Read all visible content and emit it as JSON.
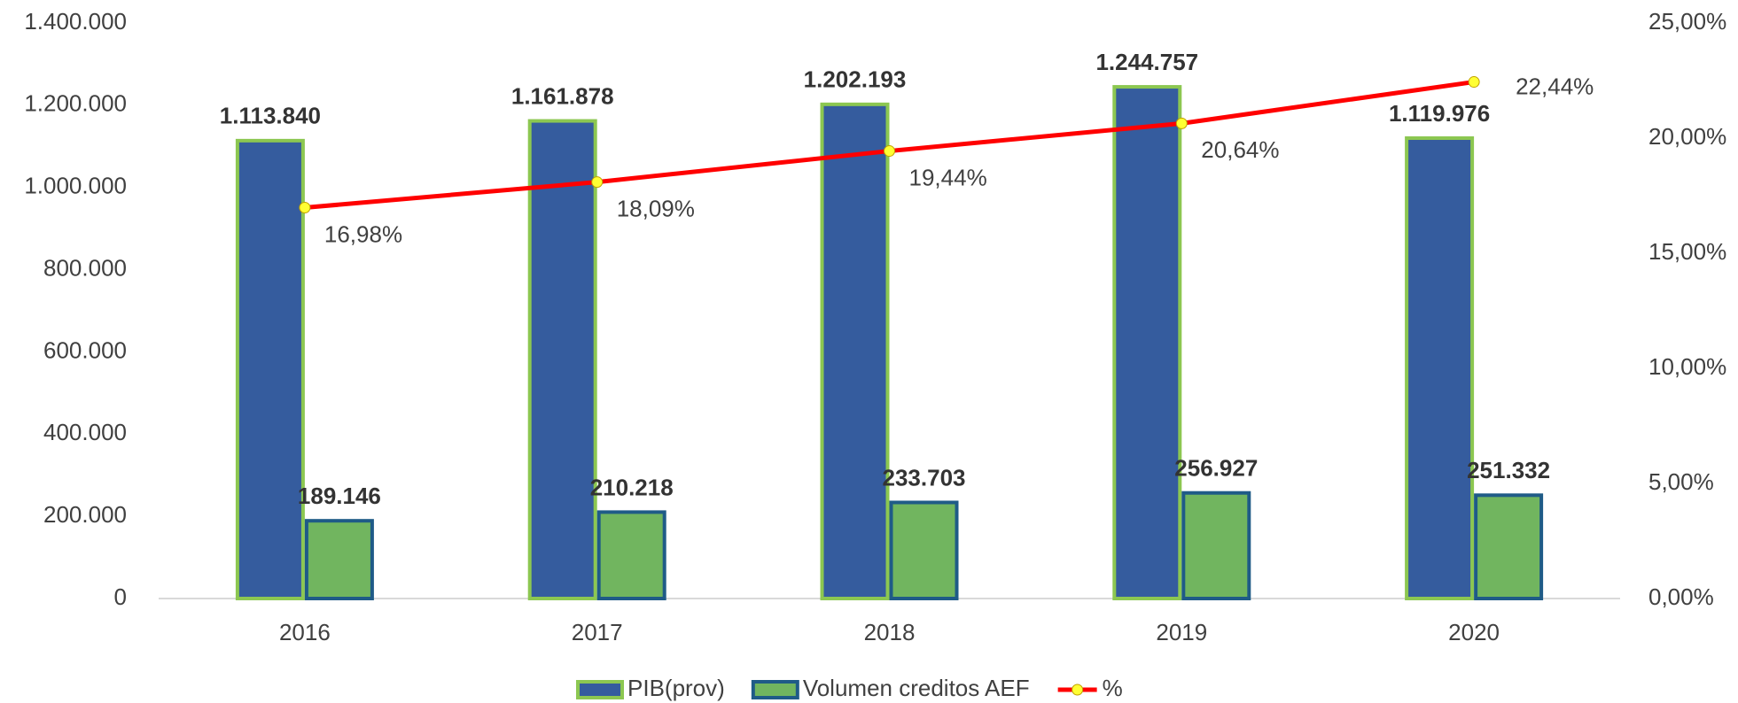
{
  "chart_data": {
    "type": "bar",
    "categories": [
      "2016",
      "2017",
      "2018",
      "2019",
      "2020"
    ],
    "series": [
      {
        "name": "PIB(prov)",
        "color": "#355c9e",
        "edge": "#8cc751",
        "values": [
          1113840,
          1161878,
          1202193,
          1244757,
          1119976
        ],
        "value_labels": [
          "1.113.840",
          "1.161.878",
          "1.202.193",
          "1.244.757",
          "1.119.976"
        ]
      },
      {
        "name": "Volumen creditos AEF",
        "color": "#71b55f",
        "edge": "#1f5b87",
        "values": [
          189146,
          210218,
          233703,
          256927,
          251332
        ],
        "value_labels": [
          "189.146",
          "210.218",
          "233.703",
          "256.927",
          "251.332"
        ]
      },
      {
        "name": "%",
        "type": "line",
        "axis": "y2",
        "color": "#ff0000",
        "marker": "#ffff33",
        "values": [
          16.98,
          18.09,
          19.44,
          20.64,
          22.44
        ],
        "value_labels": [
          "16,98%",
          "18,09%",
          "19,44%",
          "20,64%",
          "22,44%"
        ]
      }
    ],
    "ylim": [
      0,
      1400000
    ],
    "yticks": [
      0,
      {
        "value": 200000,
        "label": "200.000"
      },
      {
        "value": 400000,
        "label": "400.000"
      },
      {
        "value": 600000,
        "label": "600.000"
      },
      {
        "value": 800000,
        "label": "800.000"
      },
      {
        "value": 1000000,
        "label": "1.000.000"
      },
      {
        "value": 1200000,
        "label": "1.200.000"
      },
      {
        "value": 1400000,
        "label": "1.400.000"
      }
    ],
    "y2lim": [
      0,
      25
    ],
    "y2ticks": [
      {
        "value": 0,
        "label": "0,00%"
      },
      {
        "value": 5,
        "label": "5,00%"
      },
      {
        "value": 10,
        "label": "10,00%"
      },
      {
        "value": 15,
        "label": "15,00%"
      },
      {
        "value": 20,
        "label": "20,00%"
      },
      {
        "value": 25,
        "label": "25,00%"
      }
    ],
    "legend": "bottom"
  }
}
